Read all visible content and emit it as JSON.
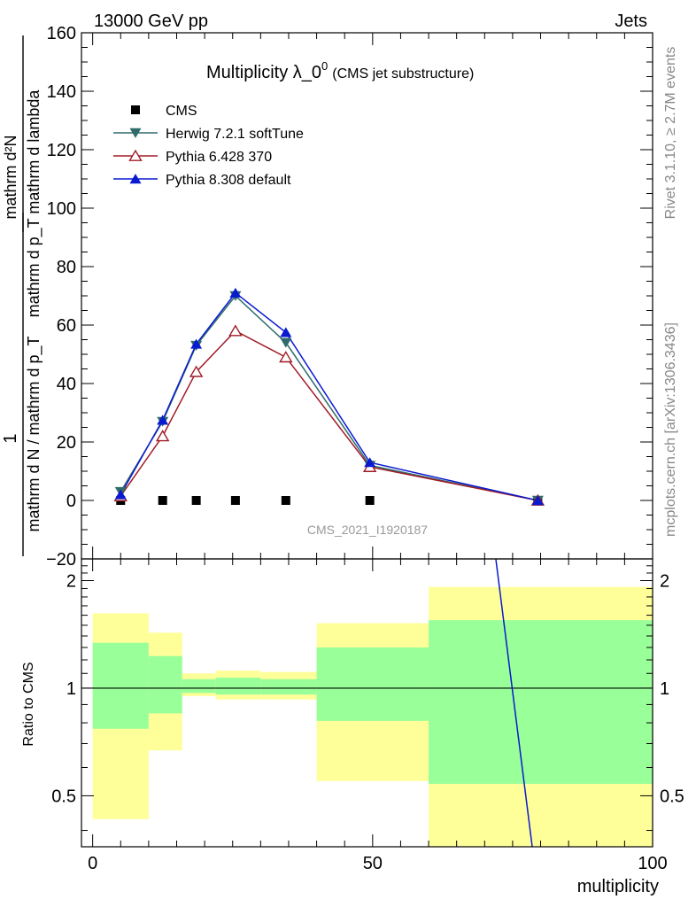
{
  "header": {
    "left": "13000 GeV pp",
    "right": "Jets"
  },
  "side_labels": {
    "rivet": "Rivet 3.1.10, ≥ 2.7M events",
    "mcplots": "mcplots.cern.ch [arXiv:1306.3436]"
  },
  "colors": {
    "cms": "#000000",
    "herwig": "#2f6b6b",
    "pythia6": "#a01c28",
    "pythia8": "#0a1ad0",
    "band_outer": "#ffff99",
    "band_inner": "#99ff99"
  },
  "chart_data": [
    {
      "type": "line",
      "title": "Multiplicity λ_0",
      "title_sup": "0",
      "title_suffix": "(CMS jet substructure)",
      "watermark": "CMS_2021_I1920187",
      "ylabel_top_numerator": "mathrm d²N",
      "ylabel_top_denominator": "mathrm d p_T mathrm d lambda",
      "ylabel_main": "1",
      "ylabel_denominator": "mathrm d N / mathrm d p_T",
      "xlim": [
        -2,
        100
      ],
      "ylim": [
        -20,
        160
      ],
      "yticks": [
        -20,
        0,
        20,
        40,
        60,
        80,
        100,
        120,
        140,
        160
      ],
      "ytick_labels": [
        "−20",
        "0",
        "20",
        "40",
        "60",
        "80",
        "100",
        "120",
        "140",
        "160"
      ],
      "legend": [
        "CMS",
        "Herwig 7.2.1 softTune",
        "Pythia 6.428 370",
        "Pythia 8.308 default"
      ],
      "series": [
        {
          "name": "CMS",
          "marker": "square",
          "x": [
            5,
            12.5,
            18.5,
            25.5,
            34.5,
            49.5,
            79.5
          ],
          "y": [
            0,
            0,
            0,
            0,
            0,
            0,
            0
          ]
        },
        {
          "name": "Herwig 7.2.1 softTune",
          "marker": "triangle-down",
          "x": [
            5,
            12.5,
            18.5,
            25.5,
            34.5,
            49.5,
            79.5
          ],
          "y": [
            3,
            27,
            53,
            70,
            54,
            12,
            0
          ]
        },
        {
          "name": "Pythia 6.428 370",
          "marker": "triangle-open",
          "x": [
            5,
            12.5,
            18.5,
            25.5,
            34.5,
            49.5,
            79.5
          ],
          "y": [
            1.5,
            22,
            44,
            58,
            49,
            11.5,
            0
          ]
        },
        {
          "name": "Pythia 8.308 default",
          "marker": "triangle-up",
          "x": [
            5,
            12.5,
            18.5,
            25.5,
            34.5,
            49.5,
            79.5
          ],
          "y": [
            2,
            27.5,
            53.5,
            71,
            57.5,
            13,
            0
          ]
        }
      ]
    },
    {
      "type": "area",
      "ylabel": "Ratio to CMS",
      "xlabel": "multiplicity",
      "xlim": [
        -2,
        100
      ],
      "ylim": [
        0.36,
        2.3
      ],
      "xticks": [
        0,
        50,
        100
      ],
      "xtick_labels": [
        "0",
        "50",
        "100"
      ],
      "yticks": [
        0.5,
        1,
        2
      ],
      "ytick_labels": [
        "0.5",
        "1",
        "2"
      ],
      "bands": [
        {
          "x_range": [
            0,
            10
          ],
          "outer": [
            0.43,
            1.62
          ],
          "inner": [
            0.77,
            1.34
          ]
        },
        {
          "x_range": [
            10,
            16
          ],
          "outer": [
            0.67,
            1.43
          ],
          "inner": [
            0.85,
            1.23
          ]
        },
        {
          "x_range": [
            16,
            22
          ],
          "outer": [
            0.95,
            1.1
          ],
          "inner": [
            0.97,
            1.06
          ]
        },
        {
          "x_range": [
            22,
            30
          ],
          "outer": [
            0.93,
            1.12
          ],
          "inner": [
            0.96,
            1.07
          ]
        },
        {
          "x_range": [
            30,
            40
          ],
          "outer": [
            0.93,
            1.11
          ],
          "inner": [
            0.96,
            1.06
          ]
        },
        {
          "x_range": [
            40,
            60
          ],
          "outer": [
            0.55,
            1.52
          ],
          "inner": [
            0.81,
            1.3
          ]
        },
        {
          "x_range": [
            60,
            100
          ],
          "outer": [
            0.36,
            1.92
          ],
          "inner": [
            0.54,
            1.55
          ]
        }
      ],
      "series": [
        {
          "name": "Pythia 8.308 default",
          "x": [
            72,
            78.5
          ],
          "y": [
            2.3,
            0.36
          ]
        }
      ]
    }
  ]
}
